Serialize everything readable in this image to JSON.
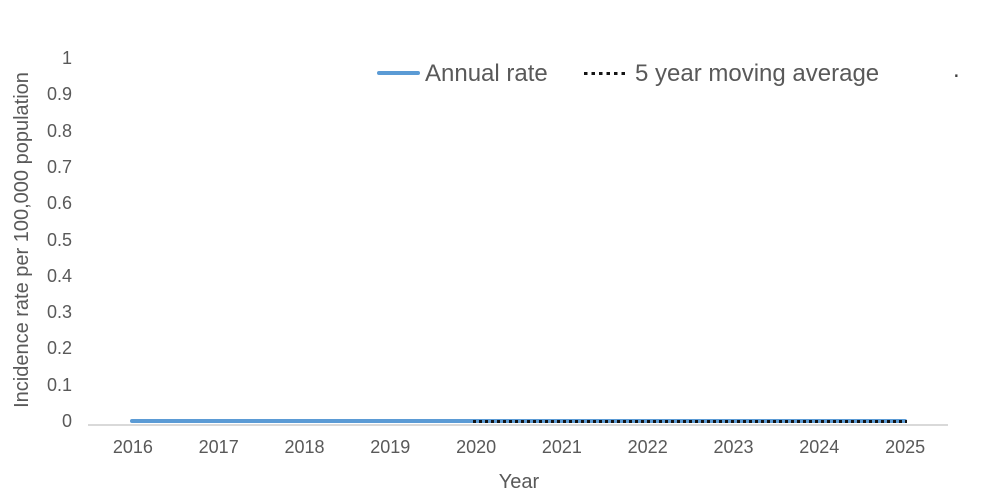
{
  "chart_data": {
    "type": "line",
    "title": "",
    "xlabel": "Year",
    "ylabel": "Incidence rate per 100,000 population",
    "categories": [
      "2016",
      "2017",
      "2018",
      "2019",
      "2020",
      "2021",
      "2022",
      "2023",
      "2024",
      "2025"
    ],
    "series": [
      {
        "name": "Annual rate",
        "values": [
          0,
          0,
          0,
          0,
          0,
          0,
          0,
          0,
          0,
          0
        ],
        "color": "#5B9BD5",
        "line_style": "solid"
      },
      {
        "name": "5 year moving average",
        "values": [
          null,
          null,
          null,
          null,
          0,
          0,
          0,
          0,
          0,
          0
        ],
        "color": "#141414",
        "line_style": "dotted"
      }
    ],
    "ylim": [
      0,
      1
    ],
    "ytick_labels": [
      "0",
      "0.1",
      "0.2",
      "0.3",
      "0.4",
      "0.5",
      "0.6",
      "0.7",
      "0.8",
      "0.9",
      "1"
    ],
    "grid": "off",
    "legend_position": "top"
  },
  "legend": {
    "items": [
      {
        "label": "Annual rate",
        "sample": "solid-blue-line"
      },
      {
        "label": "5 year moving average",
        "sample": "dotted-black-line"
      }
    ]
  },
  "decorations": {
    "stray_period": "."
  },
  "colors": {
    "background": "#FFFFFF",
    "text": "#595959",
    "axis_line": "#D9D9D9",
    "annual_rate_line": "#5B9BD5",
    "moving_average_line": "#141414"
  }
}
